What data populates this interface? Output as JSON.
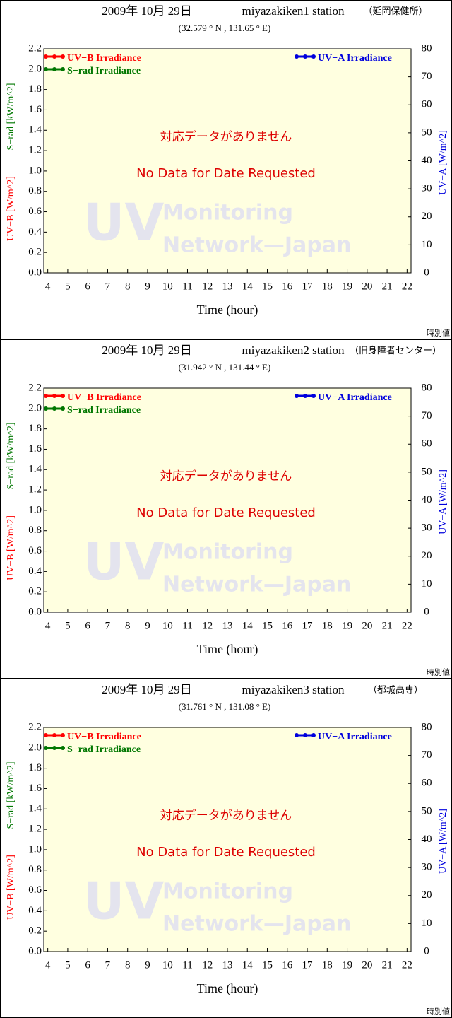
{
  "chart_data": [
    {
      "type": "line",
      "title": "2009年 10月 29日",
      "station": "miyazakiken1 station",
      "site": "（延岡保健所）",
      "subtitle": "(32.579 ° N , 131.65 ° E)",
      "xlabel": "Time (hour)",
      "ylabel": "UV−B [W/m^2]",
      "ylabel_srad": "S−rad [kW/m^2]",
      "y2label": "UV−A [W/m^2]",
      "xlim": [
        3.8,
        22.2
      ],
      "xticks": [
        4,
        5,
        6,
        7,
        8,
        9,
        10,
        11,
        12,
        13,
        14,
        15,
        16,
        17,
        18,
        19,
        20,
        21,
        22
      ],
      "ylim": [
        0,
        2.2
      ],
      "yticks": [
        {
          "value": 0,
          "label": "0.0"
        },
        0.2,
        0.4,
        0.6,
        0.8,
        {
          "value": 1,
          "label": "1.0"
        },
        1.2,
        1.4,
        1.6,
        1.8,
        {
          "value": 2,
          "label": "2.0"
        },
        2.2
      ],
      "y2lim": [
        0,
        80
      ],
      "y2ticks": [
        0,
        10,
        20,
        30,
        40,
        50,
        60,
        70,
        80
      ],
      "series": [
        {
          "name": "UV−B Irradiance",
          "color": "#ff0000",
          "values": []
        },
        {
          "name": "S−rad Irradiance",
          "color": "#007700",
          "values": []
        },
        {
          "name": "UV−A Irradiance",
          "color": "#0000dd",
          "axis": "y2",
          "values": []
        }
      ],
      "no_data_jp": "対応データがありません",
      "no_data": "No Data for Date Requested",
      "watermark": [
        "UV",
        "Monitoring",
        "Network—Japan"
      ],
      "footnote": "時別値"
    },
    {
      "type": "line",
      "title": "2009年 10月 29日",
      "station": "miyazakiken2 station",
      "site": "（旧身障者センター）",
      "subtitle": "(31.942 ° N , 131.44 ° E)",
      "xlabel": "Time (hour)",
      "ylabel": "UV−B [W/m^2]",
      "ylabel_srad": "S−rad [kW/m^2]",
      "y2label": "UV−A [W/m^2]",
      "xlim": [
        3.8,
        22.2
      ],
      "xticks": [
        4,
        5,
        6,
        7,
        8,
        9,
        10,
        11,
        12,
        13,
        14,
        15,
        16,
        17,
        18,
        19,
        20,
        21,
        22
      ],
      "ylim": [
        0,
        2.2
      ],
      "yticks": [
        {
          "value": 0,
          "label": "0.0"
        },
        0.2,
        0.4,
        0.6,
        0.8,
        {
          "value": 1,
          "label": "1.0"
        },
        1.2,
        1.4,
        1.6,
        1.8,
        {
          "value": 2,
          "label": "2.0"
        },
        2.2
      ],
      "y2lim": [
        0,
        80
      ],
      "y2ticks": [
        0,
        10,
        20,
        30,
        40,
        50,
        60,
        70,
        80
      ],
      "series": [
        {
          "name": "UV−B Irradiance",
          "color": "#ff0000",
          "values": []
        },
        {
          "name": "S−rad Irradiance",
          "color": "#007700",
          "values": []
        },
        {
          "name": "UV−A Irradiance",
          "color": "#0000dd",
          "axis": "y2",
          "values": []
        }
      ],
      "no_data_jp": "対応データがありません",
      "no_data": "No Data for Date Requested",
      "watermark": [
        "UV",
        "Monitoring",
        "Network—Japan"
      ],
      "footnote": "時別値"
    },
    {
      "type": "line",
      "title": "2009年 10月 29日",
      "station": "miyazakiken3 station",
      "site": "（都城高専）",
      "subtitle": "(31.761 ° N , 131.08 ° E)",
      "xlabel": "Time (hour)",
      "ylabel": "UV−B [W/m^2]",
      "ylabel_srad": "S−rad [kW/m^2]",
      "y2label": "UV−A [W/m^2]",
      "xlim": [
        3.8,
        22.2
      ],
      "xticks": [
        4,
        5,
        6,
        7,
        8,
        9,
        10,
        11,
        12,
        13,
        14,
        15,
        16,
        17,
        18,
        19,
        20,
        21,
        22
      ],
      "ylim": [
        0,
        2.2
      ],
      "yticks": [
        {
          "value": 0,
          "label": "0.0"
        },
        0.2,
        0.4,
        0.6,
        0.8,
        {
          "value": 1,
          "label": "1.0"
        },
        1.2,
        1.4,
        1.6,
        1.8,
        {
          "value": 2,
          "label": "2.0"
        },
        2.2
      ],
      "y2lim": [
        0,
        80
      ],
      "y2ticks": [
        0,
        10,
        20,
        30,
        40,
        50,
        60,
        70,
        80
      ],
      "series": [
        {
          "name": "UV−B Irradiance",
          "color": "#ff0000",
          "values": []
        },
        {
          "name": "S−rad Irradiance",
          "color": "#007700",
          "values": []
        },
        {
          "name": "UV−A Irradiance",
          "color": "#0000dd",
          "axis": "y2",
          "values": []
        }
      ],
      "no_data_jp": "対応データがありません",
      "no_data": "No Data for Date Requested",
      "watermark": [
        "UV",
        "Monitoring",
        "Network—Japan"
      ],
      "footnote": "時別値"
    }
  ]
}
